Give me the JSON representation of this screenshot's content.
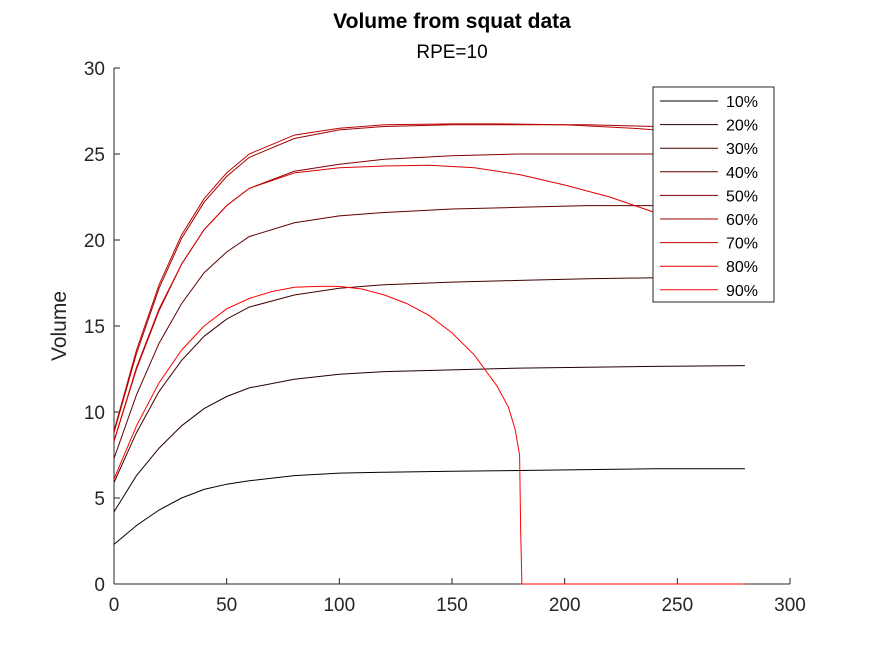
{
  "chart_data": {
    "type": "line",
    "title": "Volume from squat data",
    "subtitle": "RPE=10",
    "xlabel": "",
    "ylabel": "Volume",
    "xlim": [
      0,
      300
    ],
    "ylim": [
      0,
      30
    ],
    "xticks": [
      0,
      50,
      100,
      150,
      200,
      250,
      300
    ],
    "yticks": [
      0,
      5,
      10,
      15,
      20,
      25,
      30
    ],
    "xtick_labels": [
      "0",
      "50",
      "100",
      "150",
      "200",
      "250",
      "300"
    ],
    "ytick_labels": [
      "0",
      "5",
      "10",
      "15",
      "20",
      "25",
      "30"
    ],
    "grid": false,
    "legend_position": "top-right",
    "series": [
      {
        "name": "10%",
        "color": "#000000",
        "x": [
          0,
          10,
          20,
          30,
          40,
          50,
          60,
          80,
          100,
          120,
          150,
          180,
          210,
          240,
          280
        ],
        "y": [
          2.3,
          3.4,
          4.3,
          5.0,
          5.5,
          5.8,
          6.0,
          6.3,
          6.45,
          6.5,
          6.55,
          6.6,
          6.65,
          6.7,
          6.7
        ]
      },
      {
        "name": "20%",
        "color": "#200000",
        "x": [
          0,
          10,
          20,
          30,
          40,
          50,
          60,
          80,
          100,
          120,
          150,
          180,
          210,
          240,
          280
        ],
        "y": [
          4.2,
          6.3,
          7.9,
          9.2,
          10.2,
          10.9,
          11.4,
          11.9,
          12.2,
          12.35,
          12.45,
          12.55,
          12.6,
          12.65,
          12.7
        ]
      },
      {
        "name": "30%",
        "color": "#400000",
        "x": [
          0,
          10,
          20,
          30,
          40,
          50,
          60,
          80,
          100,
          120,
          150,
          180,
          210,
          240,
          280
        ],
        "y": [
          5.9,
          8.8,
          11.2,
          13.0,
          14.4,
          15.4,
          16.1,
          16.8,
          17.2,
          17.4,
          17.55,
          17.65,
          17.75,
          17.8,
          17.9
        ]
      },
      {
        "name": "40%",
        "color": "#600000",
        "x": [
          0,
          10,
          20,
          30,
          40,
          50,
          60,
          80,
          100,
          120,
          150,
          180,
          210,
          240,
          280
        ],
        "y": [
          7.3,
          11.0,
          14.0,
          16.3,
          18.1,
          19.3,
          20.2,
          21.0,
          21.4,
          21.6,
          21.8,
          21.9,
          22.0,
          22.0,
          22.0
        ]
      },
      {
        "name": "50%",
        "color": "#800000",
        "x": [
          0,
          10,
          20,
          30,
          40,
          50,
          60,
          80,
          100,
          120,
          150,
          180,
          210,
          240,
          280
        ],
        "y": [
          8.3,
          12.5,
          15.9,
          18.6,
          20.6,
          22.0,
          23.0,
          24.0,
          24.4,
          24.7,
          24.9,
          25.0,
          25.0,
          25.0,
          25.0
        ]
      },
      {
        "name": "60%",
        "color": "#a00000",
        "x": [
          0,
          10,
          20,
          30,
          40,
          50,
          60,
          80,
          100,
          120,
          150,
          180,
          210,
          240,
          280
        ],
        "y": [
          8.8,
          13.4,
          17.2,
          20.1,
          22.2,
          23.7,
          24.8,
          25.9,
          26.4,
          26.6,
          26.7,
          26.7,
          26.7,
          26.6,
          26.4
        ]
      },
      {
        "name": "70%",
        "color": "#c00000",
        "x": [
          0,
          10,
          20,
          30,
          40,
          50,
          60,
          80,
          100,
          120,
          150,
          170,
          200,
          230,
          250,
          280
        ],
        "y": [
          8.9,
          13.6,
          17.4,
          20.3,
          22.4,
          23.9,
          25.0,
          26.1,
          26.5,
          26.7,
          26.75,
          26.75,
          26.7,
          26.5,
          26.3,
          25.8
        ]
      },
      {
        "name": "80%",
        "color": "#e00000",
        "x": [
          0,
          10,
          20,
          30,
          40,
          50,
          60,
          80,
          100,
          120,
          140,
          160,
          180,
          200,
          220,
          240,
          260,
          280
        ],
        "y": [
          8.3,
          12.6,
          16.0,
          18.6,
          20.6,
          22.0,
          23.0,
          23.9,
          24.2,
          24.3,
          24.35,
          24.2,
          23.8,
          23.2,
          22.5,
          21.6,
          20.5,
          19.0
        ]
      },
      {
        "name": "90%",
        "color": "#ff0000",
        "x": [
          0,
          10,
          20,
          30,
          40,
          50,
          60,
          70,
          80,
          90,
          100,
          110,
          120,
          130,
          140,
          150,
          160,
          170,
          175,
          178,
          180,
          180.5,
          181,
          200,
          240,
          280
        ],
        "y": [
          6.1,
          9.2,
          11.7,
          13.6,
          15.0,
          16.0,
          16.6,
          17.0,
          17.25,
          17.3,
          17.3,
          17.15,
          16.8,
          16.3,
          15.6,
          14.6,
          13.3,
          11.5,
          10.3,
          9.0,
          7.5,
          3.0,
          0,
          0,
          0,
          0
        ]
      }
    ]
  }
}
